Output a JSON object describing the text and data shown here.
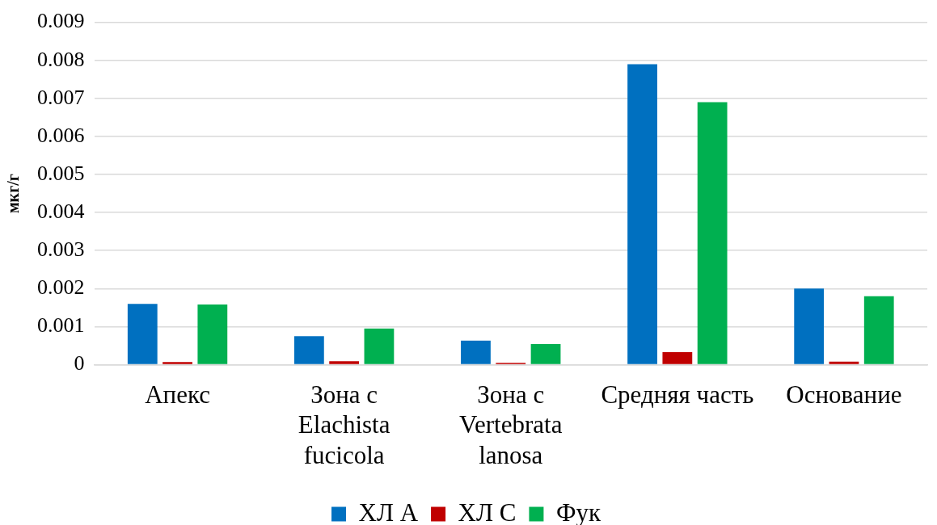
{
  "chart_data": {
    "type": "bar",
    "ylabel": "мкг/г",
    "categories": [
      "Апекс",
      "Зона с Elachista fucicola",
      "Зона с Vertebrata lanosa",
      "Средняя часть",
      "Основание"
    ],
    "series": [
      {
        "name": "ХЛ А",
        "color": "#0070c0",
        "values": [
          0.0016,
          0.00075,
          0.00063,
          0.0079,
          0.002
        ]
      },
      {
        "name": "ХЛ С",
        "color": "#c00000",
        "values": [
          7e-05,
          9e-05,
          5e-05,
          0.00033,
          8e-05
        ]
      },
      {
        "name": "Фук",
        "color": "#00b050",
        "values": [
          0.00158,
          0.00095,
          0.00054,
          0.0069,
          0.0018
        ]
      }
    ],
    "ylim": [
      0,
      0.009
    ],
    "yticks": [
      0,
      0.001,
      0.002,
      0.003,
      0.004,
      0.005,
      0.006,
      0.007,
      0.008,
      0.009
    ],
    "grid": "y",
    "legend": "bottom"
  }
}
